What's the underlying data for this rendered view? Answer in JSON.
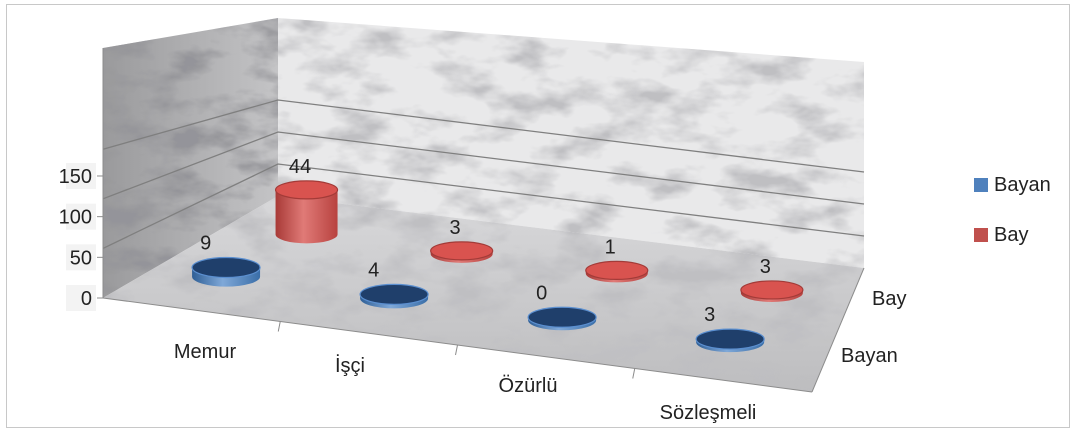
{
  "chart_data": {
    "type": "bar",
    "subtype": "3d-cylinder",
    "title": "",
    "categories": [
      "Memur",
      "İşçi",
      "Özürlü",
      "Sözleşmeli"
    ],
    "series": [
      {
        "name": "Bayan",
        "values": [
          9,
          4,
          0,
          3
        ],
        "color": "#4f81bd"
      },
      {
        "name": "Bay",
        "values": [
          44,
          3,
          1,
          3
        ],
        "color": "#c0504d"
      }
    ],
    "depth_labels": [
      "Bay",
      "Bayan"
    ],
    "y_ticks": [
      "0",
      "50",
      "100",
      "150"
    ],
    "ylim": [
      0,
      180
    ],
    "grid": true,
    "legend_position": "right",
    "data_labels": true,
    "background": "marble texture",
    "xlabel": "",
    "ylabel": ""
  },
  "colors": {
    "bayan": "#4f81bd",
    "bay": "#c0504d",
    "frame_border": "#c8c8c8",
    "gridline": "#7f7f7f"
  }
}
